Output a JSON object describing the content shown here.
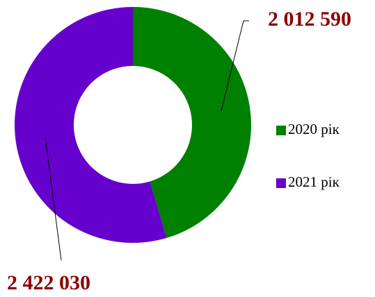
{
  "chart_data": {
    "type": "donut",
    "categories": [
      "2020 рік",
      "2021 рік"
    ],
    "series": [
      {
        "values": [
          2012590,
          2422030
        ],
        "value_labels": [
          "2 012 590",
          "2 422 030"
        ],
        "colors": [
          "#008000",
          "#6600cc"
        ]
      }
    ],
    "legend": "right"
  }
}
